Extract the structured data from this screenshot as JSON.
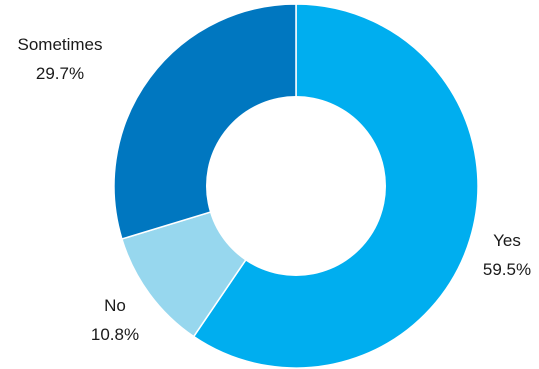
{
  "chart_data": {
    "type": "pie",
    "variant": "donut",
    "categories": [
      "Yes",
      "No",
      "Sometimes"
    ],
    "values": [
      59.5,
      10.8,
      29.7
    ],
    "value_labels": [
      "59.5%",
      "10.8%",
      "29.7%"
    ],
    "colors": [
      "#00AEEF",
      "#97D7EE",
      "#0077C0"
    ],
    "start_angle": "12 o'clock",
    "direction": "clockwise",
    "legend": "none (labels placed beside slices)",
    "title": "",
    "xlabel": "",
    "ylabel": ""
  }
}
